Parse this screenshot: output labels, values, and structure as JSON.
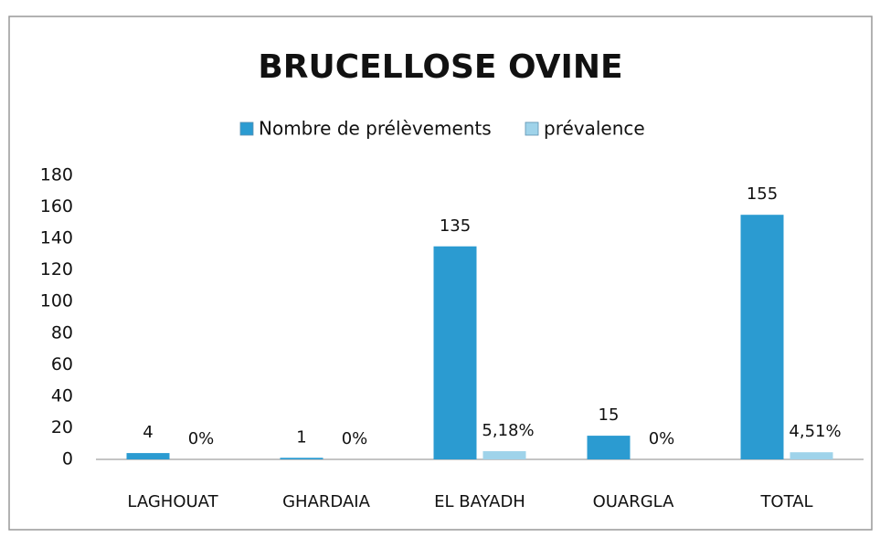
{
  "chart_data": {
    "type": "bar",
    "title": "BRUCELLOSE OVINE",
    "categories": [
      "LAGHOUAT",
      "GHARDAIA",
      "EL BAYADH",
      "OUARGLA",
      "TOTAL"
    ],
    "series": [
      {
        "name": "Nombre de prélèvements",
        "color": "#2b9bd1",
        "values": [
          4,
          1,
          135,
          15,
          155
        ]
      },
      {
        "name": "prévalence",
        "color": "#9fd3ea",
        "values": [
          0,
          0,
          5.18,
          0,
          4.51
        ],
        "value_labels": [
          "0%",
          "0%",
          "5,18%",
          "0%",
          "4,51%"
        ]
      }
    ],
    "ylim": [
      0,
      180
    ],
    "yticks": [
      0,
      20,
      40,
      60,
      80,
      100,
      120,
      140,
      160,
      180
    ],
    "grid": false,
    "legend": "top"
  }
}
